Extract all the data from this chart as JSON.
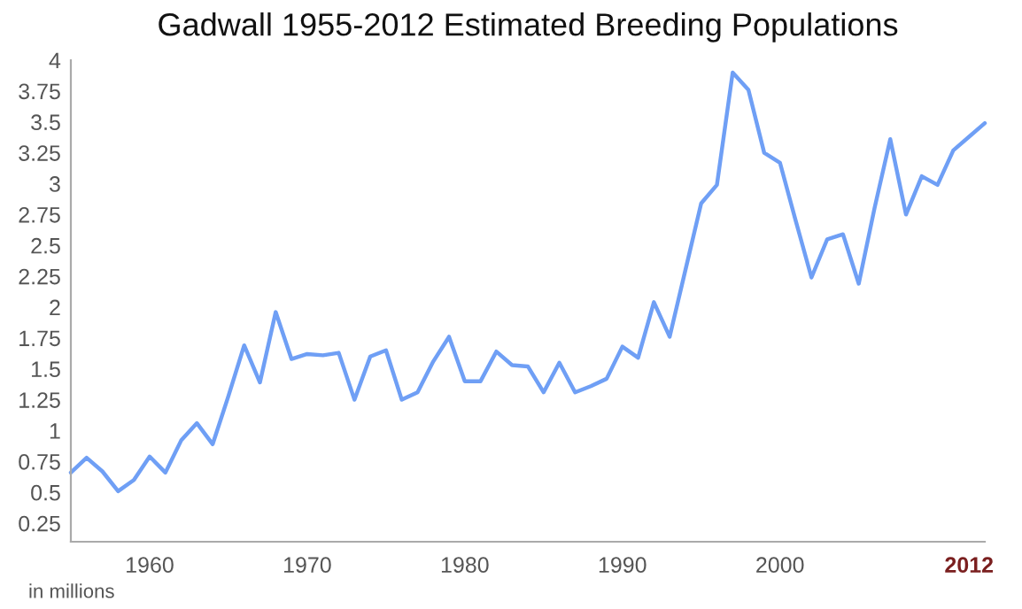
{
  "chart_data": {
    "type": "line",
    "title": "Gadwall 1955-2012 Estimated Breeding Populations",
    "x": [
      1955,
      1956,
      1957,
      1958,
      1959,
      1960,
      1961,
      1962,
      1963,
      1964,
      1965,
      1966,
      1967,
      1968,
      1969,
      1970,
      1971,
      1972,
      1973,
      1974,
      1975,
      1976,
      1977,
      1978,
      1979,
      1980,
      1981,
      1982,
      1983,
      1984,
      1985,
      1986,
      1987,
      1988,
      1989,
      1990,
      1991,
      1992,
      1993,
      1994,
      1995,
      1996,
      1997,
      1998,
      1999,
      2000,
      2001,
      2002,
      2003,
      2004,
      2005,
      2006,
      2007,
      2008,
      2009,
      2010,
      2011,
      2012,
      2013
    ],
    "series": [
      {
        "color": "#6f9ff5",
        "values": [
          0.66,
          0.78,
          0.67,
          0.51,
          0.6,
          0.79,
          0.66,
          0.92,
          1.06,
          0.89,
          1.28,
          1.69,
          1.39,
          1.96,
          1.58,
          1.62,
          1.61,
          1.63,
          1.25,
          1.6,
          1.65,
          1.25,
          1.31,
          1.56,
          1.76,
          1.4,
          1.4,
          1.64,
          1.53,
          1.52,
          1.31,
          1.55,
          1.31,
          1.36,
          1.42,
          1.68,
          1.59,
          2.04,
          1.76,
          2.3,
          2.84,
          2.99,
          3.9,
          3.76,
          3.25,
          3.17,
          2.7,
          2.24,
          2.55,
          2.59,
          2.19,
          2.8,
          3.36,
          2.75,
          3.06,
          2.99,
          3.27,
          3.38,
          3.49
        ]
      }
    ],
    "xlim": [
      1955,
      2013
    ],
    "xticks": [
      1960,
      1970,
      1980,
      1990,
      2000,
      2012
    ],
    "ylim": [
      0.1,
      4
    ],
    "yticks": [
      0.25,
      0.5,
      0.75,
      1,
      1.25,
      1.5,
      1.75,
      2,
      2.25,
      2.5,
      2.75,
      3,
      3.25,
      3.5,
      3.75,
      4
    ],
    "grid": false,
    "annotations": [
      "in millions"
    ]
  }
}
